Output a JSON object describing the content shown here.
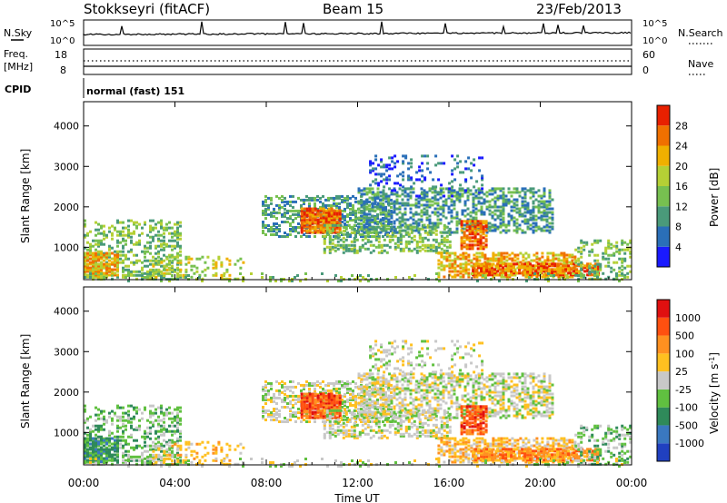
{
  "header": {
    "station": "Stokkseyri (fitACF)",
    "beam": "Beam 15",
    "date": "23/Feb/2013"
  },
  "noise_panel": {
    "left_label": "N.Sky",
    "right_label": "N.Search",
    "tick_top": "10^5",
    "tick_bottom": "10^0",
    "right_tick_top": "10^5",
    "right_tick_bottom": "10^0"
  },
  "freq_panel": {
    "left_label_1": "Freq.",
    "left_label_2": "[MHz]",
    "right_label": "Nave",
    "left_tick_top": "18",
    "left_tick_bottom": "8",
    "right_tick_top": "60",
    "right_tick_bottom": "0"
  },
  "cpid": {
    "label": "CPID",
    "mode_text": "normal (fast) 151"
  },
  "chart_data": [
    {
      "type": "heatmap",
      "name": "power",
      "ylabel": "Slant Range [km]",
      "yticks": [
        "1000",
        "2000",
        "3000",
        "4000"
      ],
      "ylim": [
        200,
        4600
      ],
      "colorbar": {
        "label": "Power [dB]",
        "ticks": [
          "4",
          "8",
          "12",
          "16",
          "20",
          "24",
          "28"
        ],
        "colors": [
          "#1a1aff",
          "#2a6fb8",
          "#4a9a7a",
          "#77c050",
          "#b5d035",
          "#f0b000",
          "#f07000",
          "#e82000"
        ]
      }
    },
    {
      "type": "heatmap",
      "name": "velocity",
      "ylabel": "Slant Range [km]",
      "yticks": [
        "1000",
        "2000",
        "3000",
        "4000"
      ],
      "ylim": [
        200,
        4600
      ],
      "colorbar": {
        "label": "Velocity [m s",
        "label_sup": "-1",
        "label_end": "]",
        "ticks": [
          "1000",
          "500",
          "100",
          "25",
          "-25",
          "-100",
          "-500",
          "-1000"
        ],
        "colors": [
          "#2040c0",
          "#3a78c0",
          "#2f8a5a",
          "#60c040",
          "#c8c8c8",
          "#ffc020",
          "#ff9020",
          "#ff5010",
          "#e01010"
        ]
      },
      "xlabel": "Time UT",
      "xticks": [
        "00:00",
        "04:00",
        "08:00",
        "12:00",
        "16:00",
        "20:00",
        "00:00"
      ]
    }
  ]
}
